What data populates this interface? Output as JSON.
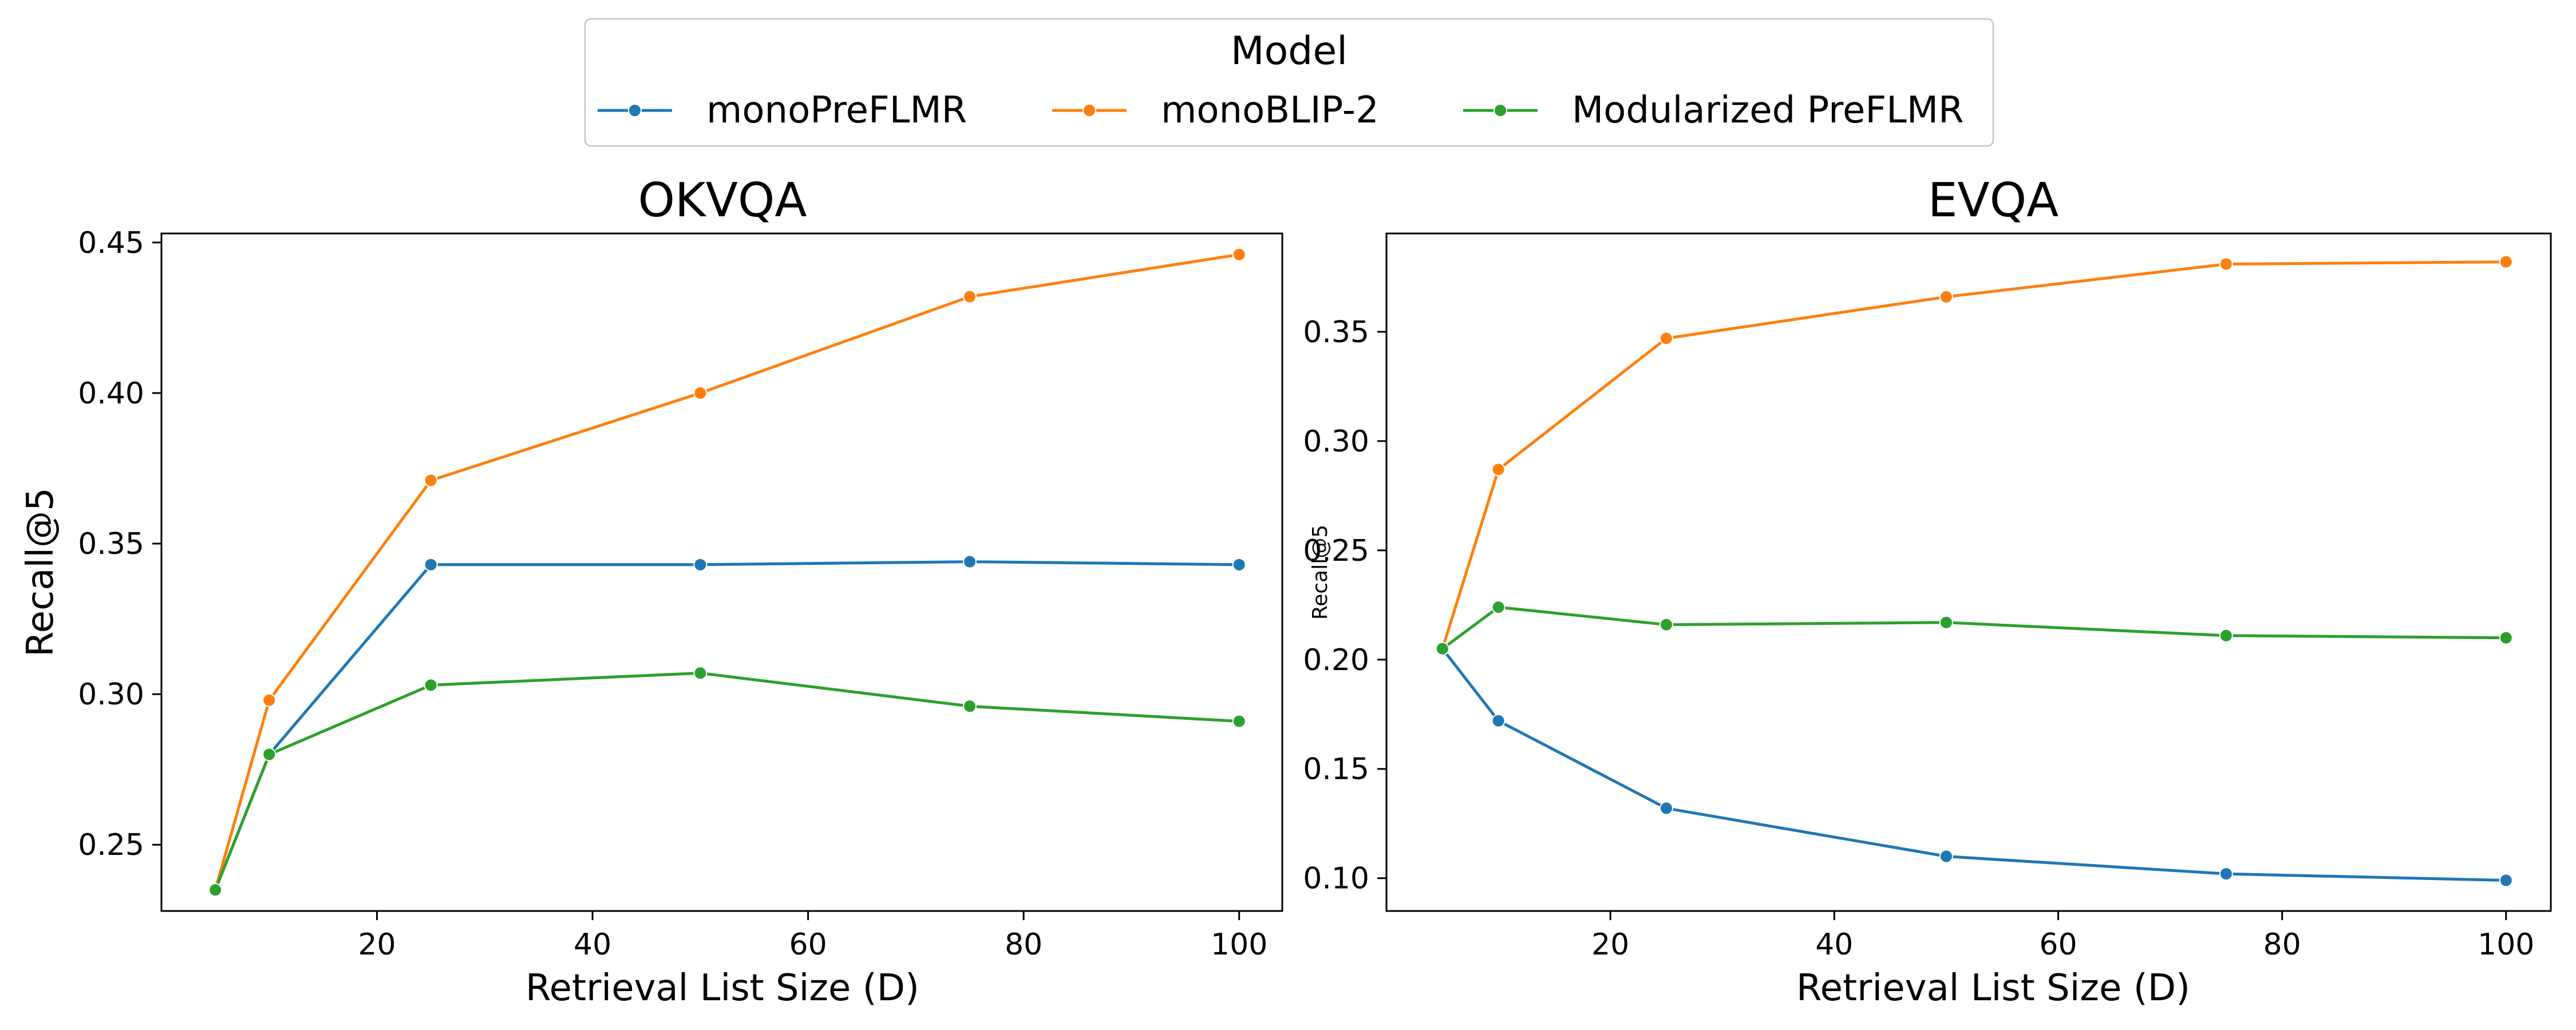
{
  "legend": {
    "title": "Model",
    "placement": "top-center",
    "entries": [
      {
        "label": "monoPreFLMR",
        "color": "#1f77b4"
      },
      {
        "label": "monoBLIP-2",
        "color": "#ff7f0e"
      },
      {
        "label": "Modularized PreFLMR",
        "color": "#2ca02c"
      }
    ]
  },
  "chart_data": [
    {
      "type": "line",
      "title": "OKVQA",
      "xlabel": "Retrieval List Size (D)",
      "ylabel": "Recall@5",
      "xlim": [
        0,
        104
      ],
      "ylim": [
        0.228,
        0.453
      ],
      "xticks": [
        20,
        40,
        60,
        80,
        100
      ],
      "yticks": [
        0.25,
        0.3,
        0.35,
        0.4,
        0.45
      ],
      "ytick_labels": [
        "0.25",
        "0.30",
        "0.35",
        "0.40",
        "0.45"
      ],
      "grid": false,
      "x": [
        5,
        10,
        25,
        50,
        75,
        100
      ],
      "series": [
        {
          "name": "monoPreFLMR",
          "color": "#1f77b4",
          "values": [
            null,
            0.28,
            0.343,
            0.343,
            0.344,
            0.343
          ]
        },
        {
          "name": "monoBLIP-2",
          "color": "#ff7f0e",
          "values": [
            null,
            0.298,
            0.371,
            0.4,
            0.432,
            0.446
          ]
        },
        {
          "name": "Modularized PreFLMR",
          "color": "#2ca02c",
          "values": [
            0.235,
            0.28,
            0.303,
            0.307,
            0.296,
            0.291
          ]
        }
      ],
      "series_line_start": [
        {
          "from_x": 5,
          "from_y": 0.235
        },
        {
          "from_x": 5,
          "from_y": 0.235
        },
        null
      ]
    },
    {
      "type": "line",
      "title": "EVQA",
      "xlabel": "Retrieval List Size (D)",
      "ylabel": "Recall@5",
      "xlim": [
        0,
        104
      ],
      "ylim": [
        0.085,
        0.395
      ],
      "xticks": [
        20,
        40,
        60,
        80,
        100
      ],
      "yticks": [
        0.1,
        0.15,
        0.2,
        0.25,
        0.3,
        0.35
      ],
      "ytick_labels": [
        "0.10",
        "0.15",
        "0.20",
        "0.25",
        "0.30",
        "0.35"
      ],
      "grid": false,
      "x": [
        5,
        10,
        25,
        50,
        75,
        100
      ],
      "series": [
        {
          "name": "monoPreFLMR",
          "color": "#1f77b4",
          "values": [
            0.205,
            0.172,
            0.132,
            0.11,
            0.102,
            0.099
          ]
        },
        {
          "name": "monoBLIP-2",
          "color": "#ff7f0e",
          "values": [
            0.205,
            0.287,
            0.347,
            0.366,
            0.381,
            0.382
          ]
        },
        {
          "name": "Modularized PreFLMR",
          "color": "#2ca02c",
          "values": [
            0.205,
            0.224,
            0.216,
            0.217,
            0.211,
            0.21
          ]
        }
      ]
    }
  ]
}
